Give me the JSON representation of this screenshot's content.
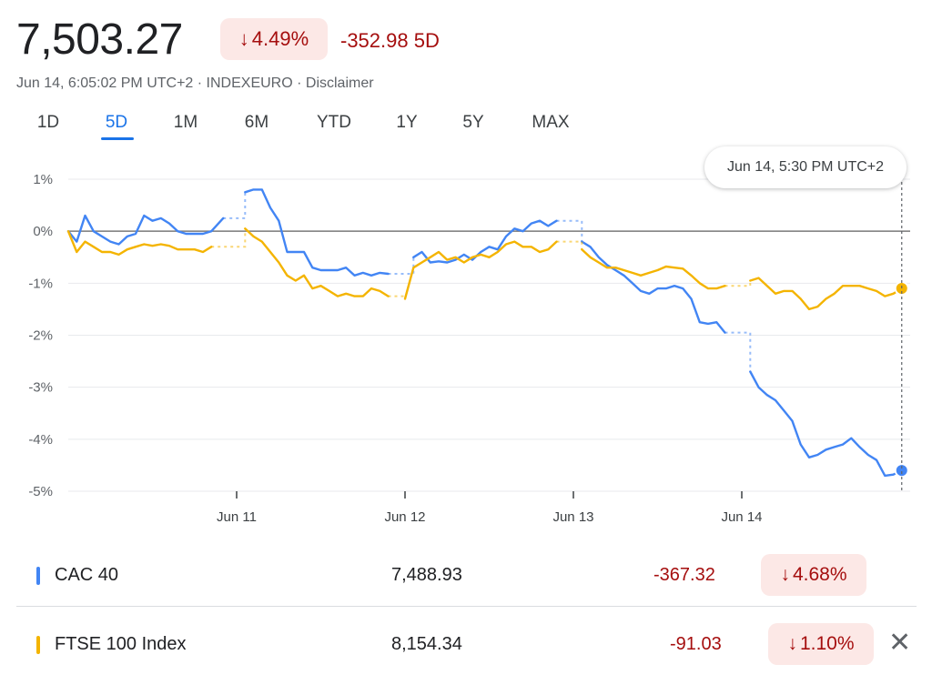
{
  "header": {
    "price": "7,503.27",
    "percent_change": "4.49%",
    "percent_arrow": "↓",
    "point_change": "-352.98 5D",
    "meta": "Jun 14, 6:05:02 PM UTC+2 · INDEXEURO · Disclaimer"
  },
  "tabs": [
    {
      "label": "1D"
    },
    {
      "label": "5D"
    },
    {
      "label": "1M"
    },
    {
      "label": "6M"
    },
    {
      "label": "YTD"
    },
    {
      "label": "1Y"
    },
    {
      "label": "5Y"
    },
    {
      "label": "MAX"
    }
  ],
  "active_tab": 1,
  "tooltip": {
    "text": "Jun 14, 5:30 PM UTC+2"
  },
  "colors": {
    "cac": "#4285f4",
    "ftse": "#f4b400",
    "negative": "#a50e0e",
    "negative_bg": "#fce8e6"
  },
  "chart_data": {
    "type": "line",
    "ylabels": [
      "1%",
      "0%",
      "-1%",
      "-2%",
      "-3%",
      "-4%",
      "-5%"
    ],
    "yticks": [
      1,
      0,
      -1,
      -2,
      -3,
      -4,
      -5
    ],
    "ylim": [
      -5,
      1
    ],
    "xlabels": [
      "Jun 11",
      "Jun 12",
      "Jun 13",
      "Jun 14"
    ],
    "xtick_positions": [
      1,
      2,
      3,
      4
    ],
    "xlim": [
      0,
      5
    ],
    "series": [
      {
        "name": "CAC 40",
        "color": "#4285f4",
        "segments": [
          [
            [
              0.0,
              0.0
            ],
            [
              0.05,
              -0.2
            ],
            [
              0.1,
              0.3
            ],
            [
              0.15,
              0.0
            ],
            [
              0.2,
              -0.1
            ],
            [
              0.25,
              -0.2
            ],
            [
              0.3,
              -0.25
            ],
            [
              0.35,
              -0.1
            ],
            [
              0.4,
              -0.05
            ],
            [
              0.45,
              0.3
            ],
            [
              0.5,
              0.2
            ],
            [
              0.55,
              0.25
            ],
            [
              0.6,
              0.15
            ],
            [
              0.65,
              0.0
            ],
            [
              0.7,
              -0.05
            ],
            [
              0.75,
              -0.05
            ],
            [
              0.8,
              -0.05
            ],
            [
              0.85,
              0.0
            ],
            [
              0.92,
              0.25
            ]
          ],
          [
            [
              1.05,
              0.75
            ],
            [
              1.1,
              0.8
            ],
            [
              1.15,
              0.8
            ],
            [
              1.2,
              0.45
            ],
            [
              1.25,
              0.2
            ],
            [
              1.3,
              -0.4
            ],
            [
              1.35,
              -0.4
            ],
            [
              1.4,
              -0.4
            ],
            [
              1.45,
              -0.7
            ],
            [
              1.5,
              -0.75
            ],
            [
              1.55,
              -0.75
            ],
            [
              1.6,
              -0.75
            ],
            [
              1.65,
              -0.7
            ],
            [
              1.7,
              -0.85
            ],
            [
              1.75,
              -0.8
            ],
            [
              1.8,
              -0.85
            ],
            [
              1.85,
              -0.8
            ],
            [
              1.9,
              -0.82
            ]
          ],
          [
            [
              2.05,
              -0.5
            ],
            [
              2.1,
              -0.4
            ],
            [
              2.15,
              -0.6
            ],
            [
              2.2,
              -0.58
            ],
            [
              2.25,
              -0.6
            ],
            [
              2.3,
              -0.55
            ],
            [
              2.35,
              -0.45
            ],
            [
              2.4,
              -0.55
            ],
            [
              2.45,
              -0.4
            ],
            [
              2.5,
              -0.3
            ],
            [
              2.55,
              -0.35
            ],
            [
              2.6,
              -0.1
            ],
            [
              2.65,
              0.05
            ],
            [
              2.7,
              0.0
            ],
            [
              2.75,
              0.15
            ],
            [
              2.8,
              0.2
            ],
            [
              2.85,
              0.1
            ],
            [
              2.9,
              0.2
            ]
          ],
          [
            [
              3.05,
              -0.2
            ],
            [
              3.1,
              -0.3
            ],
            [
              3.15,
              -0.5
            ],
            [
              3.2,
              -0.65
            ],
            [
              3.25,
              -0.75
            ],
            [
              3.3,
              -0.85
            ],
            [
              3.35,
              -1.0
            ],
            [
              3.4,
              -1.15
            ],
            [
              3.45,
              -1.2
            ],
            [
              3.5,
              -1.1
            ],
            [
              3.55,
              -1.1
            ],
            [
              3.6,
              -1.05
            ],
            [
              3.65,
              -1.1
            ],
            [
              3.7,
              -1.3
            ],
            [
              3.75,
              -1.75
            ],
            [
              3.8,
              -1.78
            ],
            [
              3.85,
              -1.75
            ],
            [
              3.9,
              -1.95
            ]
          ],
          [
            [
              4.05,
              -2.7
            ],
            [
              4.1,
              -3.0
            ],
            [
              4.15,
              -3.15
            ],
            [
              4.2,
              -3.25
            ],
            [
              4.25,
              -3.45
            ],
            [
              4.3,
              -3.65
            ],
            [
              4.35,
              -4.1
            ],
            [
              4.4,
              -4.35
            ],
            [
              4.45,
              -4.3
            ],
            [
              4.5,
              -4.2
            ],
            [
              4.55,
              -4.15
            ],
            [
              4.6,
              -4.1
            ],
            [
              4.65,
              -3.98
            ],
            [
              4.7,
              -4.15
            ],
            [
              4.75,
              -4.3
            ],
            [
              4.8,
              -4.4
            ],
            [
              4.85,
              -4.7
            ],
            [
              4.9,
              -4.68
            ],
            [
              4.95,
              -4.6
            ]
          ]
        ]
      },
      {
        "name": "FTSE 100 Index",
        "color": "#f4b400",
        "segments": [
          [
            [
              0.0,
              0.0
            ],
            [
              0.05,
              -0.4
            ],
            [
              0.1,
              -0.2
            ],
            [
              0.15,
              -0.3
            ],
            [
              0.2,
              -0.4
            ],
            [
              0.25,
              -0.4
            ],
            [
              0.3,
              -0.45
            ],
            [
              0.35,
              -0.35
            ],
            [
              0.4,
              -0.3
            ],
            [
              0.45,
              -0.25
            ],
            [
              0.5,
              -0.28
            ],
            [
              0.55,
              -0.25
            ],
            [
              0.6,
              -0.28
            ],
            [
              0.65,
              -0.35
            ],
            [
              0.7,
              -0.35
            ],
            [
              0.75,
              -0.35
            ],
            [
              0.8,
              -0.4
            ],
            [
              0.85,
              -0.3
            ]
          ],
          [
            [
              1.05,
              0.05
            ],
            [
              1.1,
              -0.1
            ],
            [
              1.15,
              -0.2
            ],
            [
              1.2,
              -0.4
            ],
            [
              1.25,
              -0.6
            ],
            [
              1.3,
              -0.85
            ],
            [
              1.35,
              -0.95
            ],
            [
              1.4,
              -0.85
            ],
            [
              1.45,
              -1.1
            ],
            [
              1.5,
              -1.05
            ],
            [
              1.55,
              -1.15
            ],
            [
              1.6,
              -1.25
            ],
            [
              1.65,
              -1.2
            ],
            [
              1.7,
              -1.25
            ],
            [
              1.75,
              -1.25
            ],
            [
              1.8,
              -1.1
            ],
            [
              1.85,
              -1.15
            ],
            [
              1.9,
              -1.25
            ]
          ],
          [
            [
              2.0,
              -1.3
            ],
            [
              2.05,
              -0.7
            ],
            [
              2.1,
              -0.6
            ],
            [
              2.15,
              -0.5
            ],
            [
              2.2,
              -0.4
            ],
            [
              2.25,
              -0.55
            ],
            [
              2.3,
              -0.5
            ],
            [
              2.35,
              -0.6
            ],
            [
              2.4,
              -0.5
            ],
            [
              2.45,
              -0.45
            ],
            [
              2.5,
              -0.5
            ],
            [
              2.55,
              -0.4
            ],
            [
              2.6,
              -0.25
            ],
            [
              2.65,
              -0.2
            ],
            [
              2.7,
              -0.3
            ],
            [
              2.75,
              -0.3
            ],
            [
              2.8,
              -0.4
            ],
            [
              2.85,
              -0.35
            ],
            [
              2.9,
              -0.2
            ]
          ],
          [
            [
              3.05,
              -0.35
            ],
            [
              3.1,
              -0.5
            ],
            [
              3.15,
              -0.6
            ],
            [
              3.2,
              -0.7
            ],
            [
              3.25,
              -0.7
            ],
            [
              3.3,
              -0.75
            ],
            [
              3.35,
              -0.8
            ],
            [
              3.4,
              -0.85
            ],
            [
              3.45,
              -0.8
            ],
            [
              3.5,
              -0.75
            ],
            [
              3.55,
              -0.68
            ],
            [
              3.6,
              -0.7
            ],
            [
              3.65,
              -0.72
            ],
            [
              3.7,
              -0.85
            ],
            [
              3.75,
              -1.0
            ],
            [
              3.8,
              -1.1
            ],
            [
              3.85,
              -1.1
            ],
            [
              3.9,
              -1.05
            ]
          ],
          [
            [
              4.05,
              -0.95
            ],
            [
              4.1,
              -0.9
            ],
            [
              4.15,
              -1.05
            ],
            [
              4.2,
              -1.2
            ],
            [
              4.25,
              -1.15
            ],
            [
              4.3,
              -1.15
            ],
            [
              4.35,
              -1.3
            ],
            [
              4.4,
              -1.5
            ],
            [
              4.45,
              -1.45
            ],
            [
              4.5,
              -1.3
            ],
            [
              4.55,
              -1.2
            ],
            [
              4.6,
              -1.05
            ],
            [
              4.65,
              -1.05
            ],
            [
              4.7,
              -1.05
            ],
            [
              4.75,
              -1.1
            ],
            [
              4.8,
              -1.15
            ],
            [
              4.85,
              -1.25
            ],
            [
              4.9,
              -1.2
            ],
            [
              4.95,
              -1.1
            ]
          ]
        ]
      }
    ]
  },
  "rows": [
    {
      "name": "CAC 40",
      "value": "7,488.93",
      "change": "-367.32",
      "percent": "4.68%",
      "arrow": "↓"
    },
    {
      "name": "FTSE 100 Index",
      "value": "8,154.34",
      "change": "-91.03",
      "percent": "1.10%",
      "arrow": "↓",
      "close": "✕"
    }
  ]
}
